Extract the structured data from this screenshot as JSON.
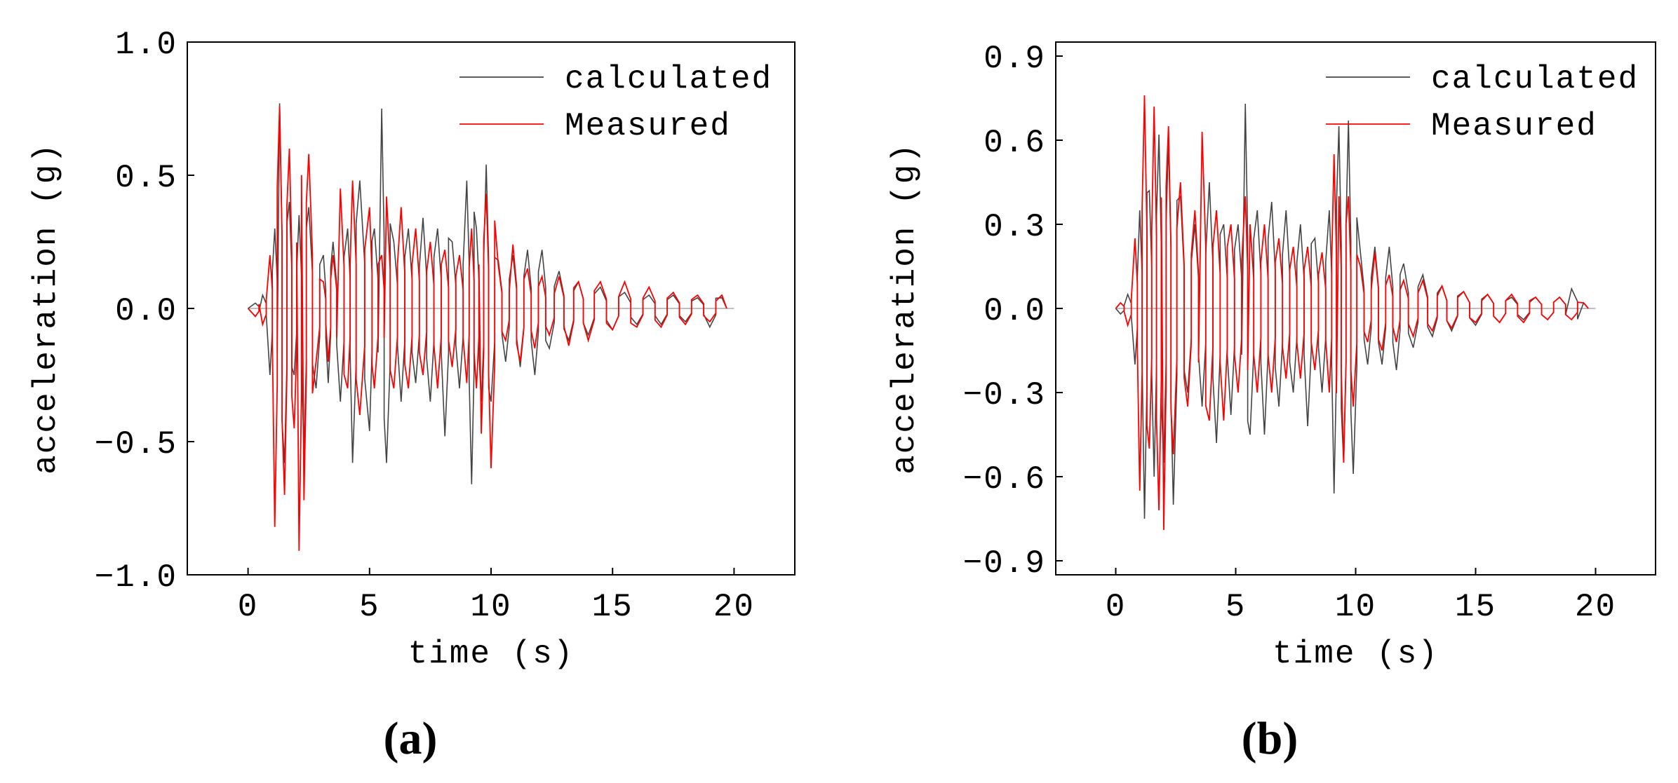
{
  "chart_data": [
    {
      "type": "line",
      "panel_label": "(a)",
      "xlabel": "time (s)",
      "ylabel": "acceleration (g)",
      "xlim": [
        -2.5,
        22.5
      ],
      "ylim": [
        -1.0,
        1.0
      ],
      "xticks": [
        0,
        5,
        10,
        15,
        20
      ],
      "xtick_labels": [
        "0",
        "5",
        "10",
        "15",
        "20"
      ],
      "yticks": [
        -1.0,
        -0.5,
        0.0,
        0.5,
        1.0
      ],
      "ytick_labels": [
        "-1.0",
        "-0.5",
        "0.0",
        "0.5",
        "1.0"
      ],
      "legend_position": "top-right",
      "peaks": [
        {
          "t": 0.3,
          "calc": 0.02,
          "meas": -0.03
        },
        {
          "t": 0.6,
          "calc": 0.05,
          "meas": -0.06
        },
        {
          "t": 0.9,
          "calc": -0.25,
          "meas": 0.2
        },
        {
          "t": 1.1,
          "calc": 0.3,
          "meas": -0.82
        },
        {
          "t": 1.3,
          "calc": 0.77,
          "meas": 0.76
        },
        {
          "t": 1.5,
          "calc": -0.58,
          "meas": -0.7
        },
        {
          "t": 1.7,
          "calc": 0.4,
          "meas": 0.6
        },
        {
          "t": 1.9,
          "calc": -0.25,
          "meas": -0.45
        },
        {
          "t": 2.1,
          "calc": 0.35,
          "meas": -0.91
        },
        {
          "t": 2.3,
          "calc": -0.55,
          "meas": -0.72
        },
        {
          "t": 2.5,
          "calc": 0.38,
          "meas": 0.58
        },
        {
          "t": 2.8,
          "calc": -0.3,
          "meas": -0.2
        },
        {
          "t": 3.1,
          "calc": 0.2,
          "meas": 0.1
        },
        {
          "t": 3.3,
          "calc": -0.28,
          "meas": -0.2
        },
        {
          "t": 3.5,
          "calc": 0.25,
          "meas": 0.2
        },
        {
          "t": 3.8,
          "calc": -0.35,
          "meas": 0.45
        },
        {
          "t": 4.1,
          "calc": 0.3,
          "meas": -0.3
        },
        {
          "t": 4.3,
          "calc": -0.58,
          "meas": 0.48
        },
        {
          "t": 4.6,
          "calc": 0.48,
          "meas": -0.4
        },
        {
          "t": 5.0,
          "calc": -0.46,
          "meas": 0.38
        },
        {
          "t": 5.2,
          "calc": 0.3,
          "meas": -0.3
        },
        {
          "t": 5.5,
          "calc": 0.75,
          "meas": 0.2
        },
        {
          "t": 5.7,
          "calc": -0.58,
          "meas": 0.42
        },
        {
          "t": 6.0,
          "calc": 0.25,
          "meas": -0.3
        },
        {
          "t": 6.3,
          "calc": -0.35,
          "meas": 0.38
        },
        {
          "t": 6.6,
          "calc": 0.3,
          "meas": -0.3
        },
        {
          "t": 6.9,
          "calc": -0.28,
          "meas": 0.3
        },
        {
          "t": 7.2,
          "calc": 0.34,
          "meas": -0.25
        },
        {
          "t": 7.5,
          "calc": -0.35,
          "meas": 0.25
        },
        {
          "t": 7.8,
          "calc": 0.3,
          "meas": -0.3
        },
        {
          "t": 8.1,
          "calc": -0.48,
          "meas": 0.22
        },
        {
          "t": 8.4,
          "calc": 0.25,
          "meas": -0.22
        },
        {
          "t": 8.7,
          "calc": -0.3,
          "meas": 0.2
        },
        {
          "t": 9.0,
          "calc": 0.48,
          "meas": -0.28
        },
        {
          "t": 9.2,
          "calc": -0.66,
          "meas": 0.3
        },
        {
          "t": 9.4,
          "calc": 0.3,
          "meas": -0.3
        },
        {
          "t": 9.6,
          "calc": -0.35,
          "meas": -0.47
        },
        {
          "t": 9.8,
          "calc": 0.54,
          "meas": 0.43
        },
        {
          "t": 10.0,
          "calc": -0.35,
          "meas": -0.6
        },
        {
          "t": 10.3,
          "calc": 0.18,
          "meas": 0.16
        },
        {
          "t": 10.6,
          "calc": -0.2,
          "meas": -0.12
        },
        {
          "t": 10.9,
          "calc": 0.2,
          "meas": 0.24
        },
        {
          "t": 11.2,
          "calc": -0.22,
          "meas": -0.2
        },
        {
          "t": 11.5,
          "calc": 0.22,
          "meas": 0.15
        },
        {
          "t": 11.8,
          "calc": -0.25,
          "meas": -0.15
        },
        {
          "t": 12.1,
          "calc": 0.22,
          "meas": 0.12
        },
        {
          "t": 12.4,
          "calc": -0.15,
          "meas": -0.1
        },
        {
          "t": 12.8,
          "calc": 0.14,
          "meas": 0.12
        },
        {
          "t": 13.2,
          "calc": -0.12,
          "meas": -0.14
        },
        {
          "t": 13.6,
          "calc": 0.1,
          "meas": 0.1
        },
        {
          "t": 14.0,
          "calc": -0.1,
          "meas": -0.12
        },
        {
          "t": 14.5,
          "calc": 0.08,
          "meas": 0.1
        },
        {
          "t": 15.0,
          "calc": -0.08,
          "meas": -0.08
        },
        {
          "t": 15.5,
          "calc": 0.06,
          "meas": 0.1
        },
        {
          "t": 16.0,
          "calc": -0.06,
          "meas": -0.07
        },
        {
          "t": 16.5,
          "calc": 0.05,
          "meas": 0.08
        },
        {
          "t": 17.0,
          "calc": -0.06,
          "meas": -0.07
        },
        {
          "t": 17.5,
          "calc": 0.05,
          "meas": 0.06
        },
        {
          "t": 18.0,
          "calc": -0.05,
          "meas": -0.06
        },
        {
          "t": 18.5,
          "calc": 0.04,
          "meas": 0.05
        },
        {
          "t": 19.0,
          "calc": -0.07,
          "meas": -0.05
        },
        {
          "t": 19.5,
          "calc": 0.04,
          "meas": 0.05
        }
      ],
      "series": [
        {
          "name": "calculated",
          "color": "#444444"
        },
        {
          "name": "Measured",
          "color": "#ff0000"
        }
      ]
    },
    {
      "type": "line",
      "panel_label": "(b)",
      "xlabel": "time (s)",
      "ylabel": "acceleration (g)",
      "xlim": [
        -2.5,
        22.5
      ],
      "ylim": [
        -0.95,
        0.95
      ],
      "xticks": [
        0,
        5,
        10,
        15,
        20
      ],
      "xtick_labels": [
        "0",
        "5",
        "10",
        "15",
        "20"
      ],
      "yticks": [
        -0.9,
        -0.6,
        -0.3,
        0.0,
        0.3,
        0.6,
        0.9
      ],
      "ytick_labels": [
        "-0.9",
        "-0.6",
        "-0.3",
        "0.0",
        "0.3",
        "0.6",
        "0.9"
      ],
      "legend_position": "top-right",
      "peaks": [
        {
          "t": 0.2,
          "calc": -0.02,
          "meas": 0.02
        },
        {
          "t": 0.5,
          "calc": 0.05,
          "meas": -0.06
        },
        {
          "t": 0.8,
          "calc": -0.2,
          "meas": 0.25
        },
        {
          "t": 1.0,
          "calc": 0.35,
          "meas": -0.65
        },
        {
          "t": 1.2,
          "calc": -0.75,
          "meas": 0.76
        },
        {
          "t": 1.4,
          "calc": 0.42,
          "meas": -0.5
        },
        {
          "t": 1.6,
          "calc": -0.6,
          "meas": 0.72
        },
        {
          "t": 1.8,
          "calc": 0.62,
          "meas": -0.72
        },
        {
          "t": 2.0,
          "calc": -0.55,
          "meas": -0.79
        },
        {
          "t": 2.2,
          "calc": 0.6,
          "meas": 0.65
        },
        {
          "t": 2.4,
          "calc": -0.7,
          "meas": -0.52
        },
        {
          "t": 2.7,
          "calc": 0.4,
          "meas": 0.45
        },
        {
          "t": 3.0,
          "calc": -0.3,
          "meas": -0.35
        },
        {
          "t": 3.3,
          "calc": 0.3,
          "meas": 0.35
        },
        {
          "t": 3.6,
          "calc": -0.35,
          "meas": 0.63
        },
        {
          "t": 3.9,
          "calc": 0.45,
          "meas": -0.4
        },
        {
          "t": 4.2,
          "calc": -0.48,
          "meas": 0.35
        },
        {
          "t": 4.5,
          "calc": 0.3,
          "meas": -0.4
        },
        {
          "t": 4.8,
          "calc": -0.38,
          "meas": 0.3
        },
        {
          "t": 5.1,
          "calc": 0.3,
          "meas": -0.3
        },
        {
          "t": 5.4,
          "calc": 0.73,
          "meas": 0.4
        },
        {
          "t": 5.6,
          "calc": -0.45,
          "meas": 0.3
        },
        {
          "t": 5.9,
          "calc": 0.35,
          "meas": -0.3
        },
        {
          "t": 6.2,
          "calc": -0.45,
          "meas": 0.3
        },
        {
          "t": 6.5,
          "calc": 0.38,
          "meas": -0.3
        },
        {
          "t": 6.8,
          "calc": -0.35,
          "meas": 0.25
        },
        {
          "t": 7.1,
          "calc": 0.35,
          "meas": -0.25
        },
        {
          "t": 7.4,
          "calc": -0.3,
          "meas": 0.22
        },
        {
          "t": 7.7,
          "calc": 0.3,
          "meas": -0.25
        },
        {
          "t": 8.0,
          "calc": -0.42,
          "meas": 0.22
        },
        {
          "t": 8.3,
          "calc": 0.25,
          "meas": -0.22
        },
        {
          "t": 8.6,
          "calc": -0.3,
          "meas": 0.2
        },
        {
          "t": 8.9,
          "calc": 0.35,
          "meas": -0.3
        },
        {
          "t": 9.1,
          "calc": -0.66,
          "meas": 0.55
        },
        {
          "t": 9.3,
          "calc": 0.65,
          "meas": 0.4
        },
        {
          "t": 9.5,
          "calc": -0.55,
          "meas": -0.55
        },
        {
          "t": 9.7,
          "calc": 0.67,
          "meas": 0.4
        },
        {
          "t": 9.9,
          "calc": -0.59,
          "meas": -0.35
        },
        {
          "t": 10.2,
          "calc": 0.2,
          "meas": 0.15
        },
        {
          "t": 10.5,
          "calc": -0.2,
          "meas": -0.12
        },
        {
          "t": 10.8,
          "calc": 0.22,
          "meas": 0.2
        },
        {
          "t": 11.1,
          "calc": -0.2,
          "meas": -0.15
        },
        {
          "t": 11.4,
          "calc": 0.22,
          "meas": 0.12
        },
        {
          "t": 11.7,
          "calc": -0.22,
          "meas": -0.12
        },
        {
          "t": 12.0,
          "calc": 0.16,
          "meas": 0.1
        },
        {
          "t": 12.4,
          "calc": -0.14,
          "meas": -0.1
        },
        {
          "t": 12.8,
          "calc": 0.12,
          "meas": 0.1
        },
        {
          "t": 13.2,
          "calc": -0.1,
          "meas": -0.08
        },
        {
          "t": 13.6,
          "calc": 0.08,
          "meas": 0.08
        },
        {
          "t": 14.0,
          "calc": -0.08,
          "meas": -0.07
        },
        {
          "t": 14.5,
          "calc": 0.06,
          "meas": 0.06
        },
        {
          "t": 15.0,
          "calc": -0.06,
          "meas": -0.05
        },
        {
          "t": 15.5,
          "calc": 0.05,
          "meas": 0.05
        },
        {
          "t": 16.0,
          "calc": -0.05,
          "meas": -0.05
        },
        {
          "t": 16.5,
          "calc": 0.04,
          "meas": 0.05
        },
        {
          "t": 17.0,
          "calc": -0.04,
          "meas": -0.05
        },
        {
          "t": 17.5,
          "calc": 0.04,
          "meas": 0.04
        },
        {
          "t": 18.0,
          "calc": -0.04,
          "meas": -0.04
        },
        {
          "t": 18.5,
          "calc": 0.04,
          "meas": 0.04
        },
        {
          "t": 19.0,
          "calc": 0.07,
          "meas": -0.04
        },
        {
          "t": 19.5,
          "calc": 0.02,
          "meas": 0.02
        }
      ],
      "series": [
        {
          "name": "calculated",
          "color": "#444444"
        },
        {
          "name": "Measured",
          "color": "#ff0000"
        }
      ]
    }
  ]
}
